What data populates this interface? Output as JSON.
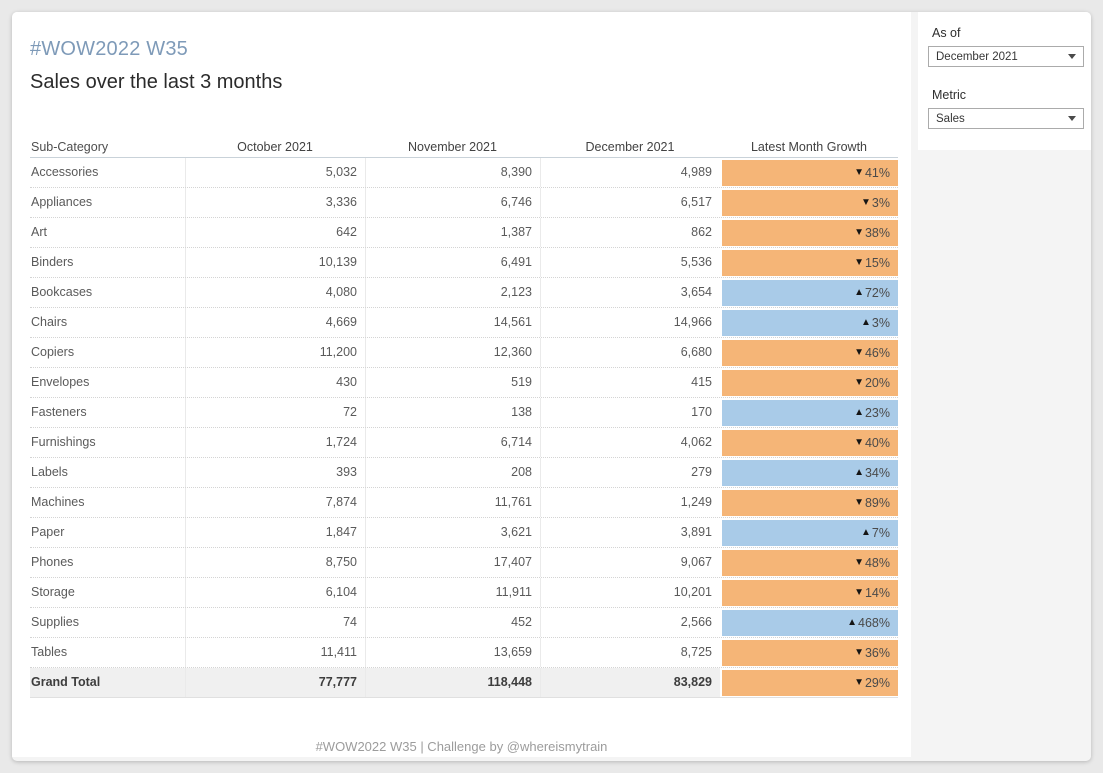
{
  "header": {
    "tag_title": "#WOW2022 W35",
    "subtitle": "Sales over the last 3 months"
  },
  "filters": {
    "as_of": {
      "label": "As of",
      "value": "December 2021"
    },
    "metric": {
      "label": "Metric",
      "value": "Sales"
    }
  },
  "footer": {
    "caption": "#WOW2022 W35 | Challenge by @whereismytrain"
  },
  "icons": {
    "up": "▲",
    "down": "▼",
    "dropdown_caret": "▼"
  },
  "colors": {
    "title_accent": "#7E9AB8",
    "increase": "#A9CBE8",
    "decrease": "#F5B577",
    "total_row_bg": "#F0F0F0",
    "page_bg": "#E9E9E9",
    "panel_bg": "#F4F4F4"
  },
  "table": {
    "columns": [
      "Sub-Category",
      "October 2021",
      "November 2021",
      "December 2021",
      "Latest Month Growth"
    ],
    "rows": [
      {
        "label": "Accessories",
        "oct": "5,032",
        "nov": "8,390",
        "dec": "4,989",
        "growth": "41%",
        "direction": "down",
        "total": false
      },
      {
        "label": "Appliances",
        "oct": "3,336",
        "nov": "6,746",
        "dec": "6,517",
        "growth": "3%",
        "direction": "down",
        "total": false
      },
      {
        "label": "Art",
        "oct": "642",
        "nov": "1,387",
        "dec": "862",
        "growth": "38%",
        "direction": "down",
        "total": false
      },
      {
        "label": "Binders",
        "oct": "10,139",
        "nov": "6,491",
        "dec": "5,536",
        "growth": "15%",
        "direction": "down",
        "total": false
      },
      {
        "label": "Bookcases",
        "oct": "4,080",
        "nov": "2,123",
        "dec": "3,654",
        "growth": "72%",
        "direction": "up",
        "total": false
      },
      {
        "label": "Chairs",
        "oct": "4,669",
        "nov": "14,561",
        "dec": "14,966",
        "growth": "3%",
        "direction": "up",
        "total": false
      },
      {
        "label": "Copiers",
        "oct": "11,200",
        "nov": "12,360",
        "dec": "6,680",
        "growth": "46%",
        "direction": "down",
        "total": false
      },
      {
        "label": "Envelopes",
        "oct": "430",
        "nov": "519",
        "dec": "415",
        "growth": "20%",
        "direction": "down",
        "total": false
      },
      {
        "label": "Fasteners",
        "oct": "72",
        "nov": "138",
        "dec": "170",
        "growth": "23%",
        "direction": "up",
        "total": false
      },
      {
        "label": "Furnishings",
        "oct": "1,724",
        "nov": "6,714",
        "dec": "4,062",
        "growth": "40%",
        "direction": "down",
        "total": false
      },
      {
        "label": "Labels",
        "oct": "393",
        "nov": "208",
        "dec": "279",
        "growth": "34%",
        "direction": "up",
        "total": false
      },
      {
        "label": "Machines",
        "oct": "7,874",
        "nov": "11,761",
        "dec": "1,249",
        "growth": "89%",
        "direction": "down",
        "total": false
      },
      {
        "label": "Paper",
        "oct": "1,847",
        "nov": "3,621",
        "dec": "3,891",
        "growth": "7%",
        "direction": "up",
        "total": false
      },
      {
        "label": "Phones",
        "oct": "8,750",
        "nov": "17,407",
        "dec": "9,067",
        "growth": "48%",
        "direction": "down",
        "total": false
      },
      {
        "label": "Storage",
        "oct": "6,104",
        "nov": "11,911",
        "dec": "10,201",
        "growth": "14%",
        "direction": "down",
        "total": false
      },
      {
        "label": "Supplies",
        "oct": "74",
        "nov": "452",
        "dec": "2,566",
        "growth": "468%",
        "direction": "up",
        "total": false
      },
      {
        "label": "Tables",
        "oct": "11,411",
        "nov": "13,659",
        "dec": "8,725",
        "growth": "36%",
        "direction": "down",
        "total": false
      },
      {
        "label": "Grand Total",
        "oct": "77,777",
        "nov": "118,448",
        "dec": "83,829",
        "growth": "29%",
        "direction": "down",
        "total": true
      }
    ]
  },
  "chart_data": {
    "type": "table",
    "title": "Sales over the last 3 months",
    "subtitle": "#WOW2022 W35",
    "columns": [
      "Sub-Category",
      "October 2021",
      "November 2021",
      "December 2021",
      "Latest Month Growth"
    ],
    "rows": [
      [
        "Accessories",
        5032,
        8390,
        4989,
        "-41%"
      ],
      [
        "Appliances",
        3336,
        6746,
        6517,
        "-3%"
      ],
      [
        "Art",
        642,
        1387,
        862,
        "-38%"
      ],
      [
        "Binders",
        10139,
        6491,
        5536,
        "-15%"
      ],
      [
        "Bookcases",
        4080,
        2123,
        3654,
        "+72%"
      ],
      [
        "Chairs",
        4669,
        14561,
        14966,
        "+3%"
      ],
      [
        "Copiers",
        11200,
        12360,
        6680,
        "-46%"
      ],
      [
        "Envelopes",
        430,
        519,
        415,
        "-20%"
      ],
      [
        "Fasteners",
        72,
        138,
        170,
        "+23%"
      ],
      [
        "Furnishings",
        1724,
        6714,
        4062,
        "-40%"
      ],
      [
        "Labels",
        393,
        208,
        279,
        "+34%"
      ],
      [
        "Machines",
        7874,
        11761,
        1249,
        "-89%"
      ],
      [
        "Paper",
        1847,
        3621,
        3891,
        "+7%"
      ],
      [
        "Phones",
        8750,
        17407,
        9067,
        "-48%"
      ],
      [
        "Storage",
        6104,
        11911,
        10201,
        "-14%"
      ],
      [
        "Supplies",
        74,
        452,
        2566,
        "+468%"
      ],
      [
        "Tables",
        11411,
        13659,
        8725,
        "-36%"
      ],
      [
        "Grand Total",
        77777,
        118448,
        83829,
        "-29%"
      ]
    ],
    "legend": {
      "increase_color": "#A9CBE8",
      "decrease_color": "#F5B577"
    },
    "notes": "Growth bars: blue = increase vs prior month, orange = decrease; triangle glyphs ▲/▼ indicate direction"
  }
}
